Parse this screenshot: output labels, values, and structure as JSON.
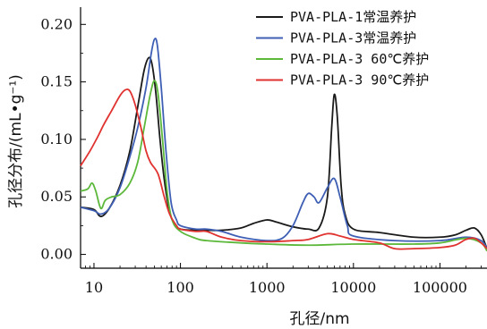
{
  "chart_data": {
    "type": "line",
    "xlabel": "孔径/nm",
    "ylabel": "孔径分布/(mL•g⁻¹)",
    "xscale": "log",
    "xlim": [
      7,
      350000
    ],
    "ylim": [
      -0.012,
      0.215
    ],
    "xticks": [
      10,
      100,
      1000,
      10000,
      100000
    ],
    "xtick_labels": [
      "10",
      "100",
      "1000",
      "10000",
      "100000"
    ],
    "yticks": [
      0.0,
      0.05,
      0.1,
      0.15,
      0.2
    ],
    "ytick_labels": [
      "0.00",
      "0.05",
      "0.10",
      "0.15",
      "0.20"
    ],
    "legend_position": "top-right",
    "grid": false,
    "series": [
      {
        "name": "PVA-PLA-1常温养护",
        "color": "#1a1a1a",
        "points": [
          [
            7,
            0.041
          ],
          [
            10,
            0.039
          ],
          [
            12,
            0.033
          ],
          [
            15,
            0.04
          ],
          [
            20,
            0.06
          ],
          [
            26,
            0.09
          ],
          [
            32,
            0.128
          ],
          [
            38,
            0.16
          ],
          [
            43,
            0.171
          ],
          [
            47,
            0.165
          ],
          [
            52,
            0.14
          ],
          [
            58,
            0.1
          ],
          [
            65,
            0.065
          ],
          [
            75,
            0.037
          ],
          [
            85,
            0.027
          ],
          [
            100,
            0.022
          ],
          [
            150,
            0.021
          ],
          [
            200,
            0.021
          ],
          [
            300,
            0.021
          ],
          [
            500,
            0.023
          ],
          [
            700,
            0.027
          ],
          [
            1000,
            0.03
          ],
          [
            1300,
            0.028
          ],
          [
            2000,
            0.024
          ],
          [
            3000,
            0.022
          ],
          [
            4000,
            0.023
          ],
          [
            5000,
            0.05
          ],
          [
            5600,
            0.11
          ],
          [
            6000,
            0.139
          ],
          [
            6500,
            0.12
          ],
          [
            7200,
            0.06
          ],
          [
            8000,
            0.035
          ],
          [
            10000,
            0.022
          ],
          [
            20000,
            0.019
          ],
          [
            50000,
            0.015
          ],
          [
            100000,
            0.015
          ],
          [
            150000,
            0.017
          ],
          [
            200000,
            0.021
          ],
          [
            250000,
            0.023
          ],
          [
            300000,
            0.017
          ],
          [
            350000,
            0.005
          ]
        ]
      },
      {
        "name": "PVA-PLA-3常温养护",
        "color": "#3f5fb5",
        "points": [
          [
            7,
            0.041
          ],
          [
            10,
            0.038
          ],
          [
            12,
            0.035
          ],
          [
            15,
            0.04
          ],
          [
            20,
            0.058
          ],
          [
            26,
            0.085
          ],
          [
            32,
            0.11
          ],
          [
            40,
            0.145
          ],
          [
            46,
            0.175
          ],
          [
            50,
            0.187
          ],
          [
            54,
            0.182
          ],
          [
            60,
            0.145
          ],
          [
            68,
            0.09
          ],
          [
            78,
            0.045
          ],
          [
            90,
            0.03
          ],
          [
            100,
            0.025
          ],
          [
            150,
            0.022
          ],
          [
            200,
            0.022
          ],
          [
            300,
            0.02
          ],
          [
            500,
            0.015
          ],
          [
            1000,
            0.012
          ],
          [
            1500,
            0.014
          ],
          [
            2000,
            0.025
          ],
          [
            2600,
            0.045
          ],
          [
            3000,
            0.053
          ],
          [
            3500,
            0.05
          ],
          [
            4000,
            0.045
          ],
          [
            5000,
            0.058
          ],
          [
            6000,
            0.066
          ],
          [
            7000,
            0.05
          ],
          [
            8500,
            0.025
          ],
          [
            10000,
            0.016
          ],
          [
            30000,
            0.012
          ],
          [
            100000,
            0.012
          ],
          [
            200000,
            0.015
          ],
          [
            300000,
            0.012
          ],
          [
            350000,
            0.005
          ]
        ]
      },
      {
        "name": "PVA-PLA-3  60℃养护",
        "color": "#5cb83a",
        "points": [
          [
            7,
            0.055
          ],
          [
            8.5,
            0.057
          ],
          [
            9.5,
            0.062
          ],
          [
            10.5,
            0.055
          ],
          [
            12,
            0.04
          ],
          [
            13.5,
            0.047
          ],
          [
            16,
            0.05
          ],
          [
            20,
            0.052
          ],
          [
            26,
            0.062
          ],
          [
            32,
            0.08
          ],
          [
            38,
            0.11
          ],
          [
            45,
            0.14
          ],
          [
            50,
            0.151
          ],
          [
            55,
            0.14
          ],
          [
            62,
            0.1
          ],
          [
            70,
            0.055
          ],
          [
            80,
            0.03
          ],
          [
            100,
            0.02
          ],
          [
            150,
            0.014
          ],
          [
            200,
            0.012
          ],
          [
            500,
            0.01
          ],
          [
            1000,
            0.009
          ],
          [
            3000,
            0.008
          ],
          [
            10000,
            0.009
          ],
          [
            50000,
            0.009
          ],
          [
            100000,
            0.01
          ],
          [
            200000,
            0.014
          ],
          [
            300000,
            0.01
          ],
          [
            350000,
            0.003
          ]
        ]
      },
      {
        "name": "PVA-PLA-3  90℃养护",
        "color": "#e0322f",
        "points": [
          [
            7,
            0.077
          ],
          [
            9,
            0.09
          ],
          [
            11,
            0.102
          ],
          [
            13,
            0.113
          ],
          [
            16,
            0.125
          ],
          [
            20,
            0.138
          ],
          [
            23,
            0.143
          ],
          [
            26,
            0.142
          ],
          [
            30,
            0.13
          ],
          [
            35,
            0.11
          ],
          [
            40,
            0.09
          ],
          [
            45,
            0.08
          ],
          [
            55,
            0.07
          ],
          [
            65,
            0.05
          ],
          [
            75,
            0.035
          ],
          [
            90,
            0.025
          ],
          [
            100,
            0.022
          ],
          [
            150,
            0.02
          ],
          [
            200,
            0.02
          ],
          [
            300,
            0.015
          ],
          [
            500,
            0.012
          ],
          [
            1000,
            0.011
          ],
          [
            2000,
            0.012
          ],
          [
            3000,
            0.013
          ],
          [
            5000,
            0.018
          ],
          [
            7000,
            0.016
          ],
          [
            10000,
            0.013
          ],
          [
            20000,
            0.01
          ],
          [
            30000,
            0.005
          ],
          [
            50000,
            0.005
          ],
          [
            100000,
            0.006
          ],
          [
            150000,
            0.008
          ],
          [
            200000,
            0.013
          ],
          [
            250000,
            0.014
          ],
          [
            300000,
            0.01
          ],
          [
            350000,
            0.005
          ]
        ]
      }
    ]
  }
}
